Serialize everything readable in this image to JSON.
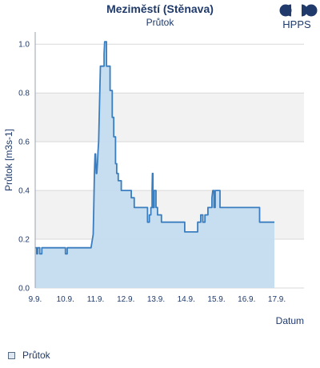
{
  "header": {
    "title": "Meziměstí (Stěnava)",
    "subtitle": "Průtok",
    "logo_text": "HPPS"
  },
  "legend": {
    "label": "Průtok"
  },
  "chart_data": {
    "type": "area",
    "title": "Meziměstí (Stěnava)",
    "subtitle": "Průtok",
    "xlabel": "Datum",
    "ylabel": "Průtok [m3s-1]",
    "xlim": [
      9.0,
      17.9
    ],
    "ylim": [
      0,
      1.05
    ],
    "x_ticks": [
      9.0,
      10.0,
      11.0,
      12.0,
      13.0,
      14.0,
      15.0,
      16.0,
      17.0
    ],
    "x_tick_labels": [
      "9.9.",
      "10.9.",
      "11.9.",
      "12.9.",
      "13.9.",
      "14.9.",
      "15.9.",
      "16.9.",
      "17.9."
    ],
    "y_ticks": [
      0,
      0.2,
      0.4,
      0.6,
      0.8,
      1.0
    ],
    "y_tick_labels": [
      "0.0",
      "0.2",
      "0.4",
      "0.6",
      "0.8",
      "1.0"
    ],
    "grid": true,
    "legend_position": "bottom-left",
    "colors": {
      "line": "#3a7ec0",
      "fill": "#c4dbef",
      "band": "#f2f2f2",
      "grid": "#d8d8d8"
    },
    "series": [
      {
        "name": "Průtok",
        "points": [
          [
            9.0,
            0.165
          ],
          [
            9.05,
            0.165
          ],
          [
            9.05,
            0.14
          ],
          [
            9.08,
            0.14
          ],
          [
            9.08,
            0.165
          ],
          [
            9.15,
            0.165
          ],
          [
            9.15,
            0.14
          ],
          [
            9.22,
            0.14
          ],
          [
            9.22,
            0.165
          ],
          [
            10.0,
            0.165
          ],
          [
            10.0,
            0.14
          ],
          [
            10.06,
            0.14
          ],
          [
            10.06,
            0.165
          ],
          [
            10.85,
            0.165
          ],
          [
            10.88,
            0.19
          ],
          [
            10.92,
            0.22
          ],
          [
            10.94,
            0.33
          ],
          [
            10.96,
            0.47
          ],
          [
            10.98,
            0.55
          ],
          [
            11.0,
            0.55
          ],
          [
            11.02,
            0.47
          ],
          [
            11.04,
            0.47
          ],
          [
            11.06,
            0.51
          ],
          [
            11.08,
            0.56
          ],
          [
            11.1,
            0.6
          ],
          [
            11.12,
            0.7
          ],
          [
            11.14,
            0.81
          ],
          [
            11.16,
            0.91
          ],
          [
            11.28,
            0.91
          ],
          [
            11.28,
            0.96
          ],
          [
            11.3,
            1.01
          ],
          [
            11.36,
            1.01
          ],
          [
            11.36,
            0.91
          ],
          [
            11.48,
            0.91
          ],
          [
            11.48,
            0.81
          ],
          [
            11.55,
            0.81
          ],
          [
            11.55,
            0.7
          ],
          [
            11.6,
            0.7
          ],
          [
            11.6,
            0.62
          ],
          [
            11.66,
            0.62
          ],
          [
            11.66,
            0.51
          ],
          [
            11.7,
            0.51
          ],
          [
            11.7,
            0.47
          ],
          [
            11.75,
            0.47
          ],
          [
            11.75,
            0.44
          ],
          [
            11.85,
            0.44
          ],
          [
            11.85,
            0.4
          ],
          [
            12.18,
            0.4
          ],
          [
            12.18,
            0.37
          ],
          [
            12.28,
            0.37
          ],
          [
            12.28,
            0.33
          ],
          [
            12.72,
            0.33
          ],
          [
            12.72,
            0.27
          ],
          [
            12.78,
            0.27
          ],
          [
            12.78,
            0.3
          ],
          [
            12.83,
            0.3
          ],
          [
            12.83,
            0.33
          ],
          [
            12.87,
            0.33
          ],
          [
            12.87,
            0.4
          ],
          [
            12.88,
            0.47
          ],
          [
            12.9,
            0.47
          ],
          [
            12.9,
            0.33
          ],
          [
            12.94,
            0.33
          ],
          [
            12.94,
            0.4
          ],
          [
            13.0,
            0.4
          ],
          [
            13.0,
            0.33
          ],
          [
            13.05,
            0.33
          ],
          [
            13.05,
            0.3
          ],
          [
            13.18,
            0.3
          ],
          [
            13.18,
            0.27
          ],
          [
            13.95,
            0.27
          ],
          [
            13.95,
            0.23
          ],
          [
            14.38,
            0.23
          ],
          [
            14.38,
            0.27
          ],
          [
            14.48,
            0.27
          ],
          [
            14.48,
            0.3
          ],
          [
            14.55,
            0.3
          ],
          [
            14.55,
            0.27
          ],
          [
            14.62,
            0.27
          ],
          [
            14.62,
            0.3
          ],
          [
            14.72,
            0.3
          ],
          [
            14.72,
            0.33
          ],
          [
            14.85,
            0.33
          ],
          [
            14.85,
            0.37
          ],
          [
            14.88,
            0.4
          ],
          [
            14.92,
            0.4
          ],
          [
            14.92,
            0.33
          ],
          [
            14.96,
            0.33
          ],
          [
            14.96,
            0.4
          ],
          [
            15.12,
            0.4
          ],
          [
            15.12,
            0.33
          ],
          [
            16.43,
            0.33
          ],
          [
            16.43,
            0.27
          ],
          [
            16.92,
            0.27
          ]
        ]
      }
    ]
  }
}
